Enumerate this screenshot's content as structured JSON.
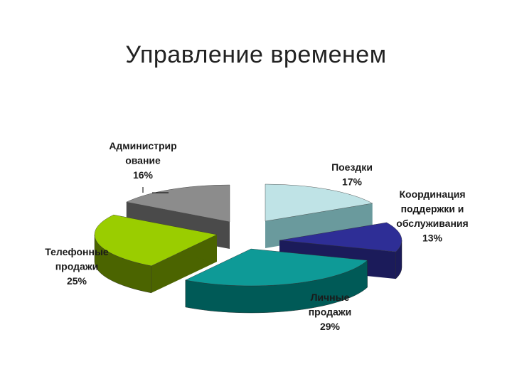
{
  "slide": {
    "title": "Управление временем"
  },
  "chart_data": {
    "type": "pie",
    "title": "Управление временем",
    "series": [
      {
        "slices": [
          {
            "label": "Поездки",
            "value": 17,
            "color_top": "#bfe3e6",
            "color_side": "#6a9a9d"
          },
          {
            "label": "Координация поддержки и обслуживания",
            "value": 13,
            "color_top": "#2e2e96",
            "color_side": "#1b1b5a"
          },
          {
            "label": "Личные продажи",
            "value": 29,
            "color_top": "#0e9a97",
            "color_side": "#005a57"
          },
          {
            "label": "Телефонные продажи",
            "value": 25,
            "color_top": "#9acd00",
            "color_side": "#4b6400"
          },
          {
            "label": "Администрирование",
            "value": 16,
            "color_top": "#8c8c8c",
            "color_side": "#4a4a4a"
          }
        ]
      }
    ],
    "data_labels": [
      [
        "Поездки",
        "17%"
      ],
      [
        "Координация",
        "поддержки и",
        "обслуживания",
        "13%"
      ],
      [
        "Личные",
        "продажи",
        "29%"
      ],
      [
        "Телефонные",
        "продажи",
        "25%"
      ],
      [
        "Администрир",
        "ование",
        "16%"
      ]
    ],
    "legend": "none",
    "style": "3d-exploded"
  }
}
